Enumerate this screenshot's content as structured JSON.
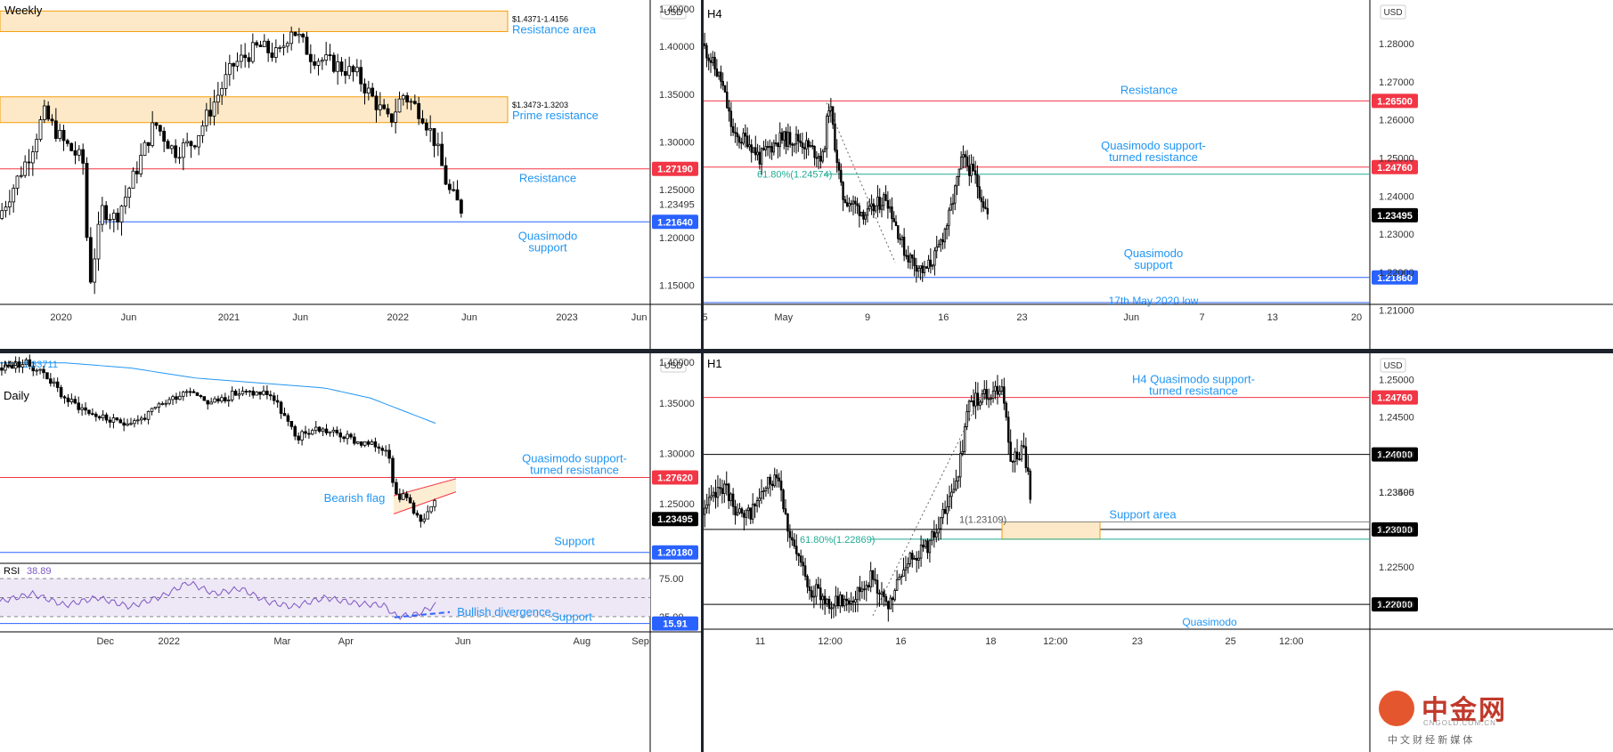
{
  "colors": {
    "up": "#ffffff",
    "down": "#000000",
    "wick": "#000000",
    "red_line": "#f23645",
    "blue_line": "#2962ff",
    "green_line": "#22ab94",
    "label_blue": "#2196f3",
    "zone_fill": "#fde9c7",
    "zone_border": "#f59e0b",
    "ma": "#2196f3",
    "rsi": "#7e57c2",
    "rsi_band": "#ede7f6",
    "price_tag": "#000000"
  },
  "logo": {
    "text": "中金网",
    "sub": "CNGOLD.COM.CN",
    "tag": "中 文 财 经 新 媒 体"
  },
  "chart_data": [
    {
      "id": "weekly",
      "type": "candlestick",
      "title": "Weekly",
      "currency": "USD",
      "ylim": [
        1.13,
        1.43
      ],
      "ticks": [
        "1.40000",
        "1.35000",
        "1.30000",
        "1.25000",
        "1.20000",
        "1.15000"
      ],
      "tick_values": [
        1.4,
        1.35,
        1.3,
        1.25,
        1.2,
        1.15
      ],
      "top_partial": "1.40000",
      "x_labels": [
        "2020",
        "Jun",
        "2021",
        "Jun",
        "2022",
        "Jun",
        "2023",
        "Jun"
      ],
      "x_positions": [
        0.094,
        0.198,
        0.352,
        0.462,
        0.612,
        0.722,
        0.872,
        0.983
      ],
      "last_price": "1.23495",
      "zones": [
        {
          "top": 1.4371,
          "bottom": 1.4156,
          "range_label": "$1.4371-1.4156",
          "name": "Resistance area"
        },
        {
          "top": 1.3473,
          "bottom": 1.3203,
          "range_label": "$1.3473-1.3203",
          "name": "Prime resistance"
        }
      ],
      "levels": [
        {
          "value": 1.2719,
          "tag": "1.27190",
          "color": "red",
          "label": "Resistance"
        },
        {
          "value": 1.2164,
          "tag": "1.21640",
          "color": "blue",
          "label": "Quasimodo support"
        }
      ],
      "segments": [
        [
          0,
          1.22
        ],
        [
          0.05,
          1.29
        ],
        [
          0.07,
          1.33
        ],
        [
          0.1,
          1.3
        ],
        [
          0.13,
          1.28
        ],
        [
          0.14,
          1.15
        ],
        [
          0.16,
          1.23
        ],
        [
          0.18,
          1.22
        ],
        [
          0.2,
          1.25
        ],
        [
          0.24,
          1.32
        ],
        [
          0.27,
          1.29
        ],
        [
          0.3,
          1.3
        ],
        [
          0.33,
          1.34
        ],
        [
          0.36,
          1.38
        ],
        [
          0.4,
          1.4
        ],
        [
          0.43,
          1.39
        ],
        [
          0.45,
          1.42
        ],
        [
          0.48,
          1.39
        ],
        [
          0.52,
          1.38
        ],
        [
          0.55,
          1.37
        ],
        [
          0.58,
          1.34
        ],
        [
          0.6,
          1.32
        ],
        [
          0.62,
          1.35
        ],
        [
          0.65,
          1.33
        ],
        [
          0.67,
          1.3
        ],
        [
          0.69,
          1.25
        ],
        [
          0.71,
          1.23
        ]
      ]
    },
    {
      "id": "h4",
      "type": "candlestick",
      "title": "H4",
      "currency": "USD",
      "ylim": [
        1.2085,
        1.2915
      ],
      "ticks": [
        "1.28000",
        "1.27000",
        "1.26000",
        "1.25000",
        "1.24000",
        "1.23000",
        "1.22000",
        "1.21000"
      ],
      "tick_values": [
        1.28,
        1.27,
        1.26,
        1.25,
        1.24,
        1.23,
        1.22,
        1.21
      ],
      "x_labels": [
        "5",
        "May",
        "9",
        "16",
        "23",
        "Jun",
        "7",
        "13",
        "20"
      ],
      "x_positions": [
        0.002,
        0.12,
        0.246,
        0.36,
        0.478,
        0.642,
        0.748,
        0.854,
        0.98
      ],
      "last_price": "1.23495",
      "levels": [
        {
          "value": 1.265,
          "tag": "1.26500",
          "color": "red",
          "label": "Resistance"
        },
        {
          "value": 1.2476,
          "tag": "1.24760",
          "color": "red",
          "label": "Quasimodo support-turned resistance"
        },
        {
          "value": 1.2186,
          "tag": "1.21860",
          "color": "blue",
          "label": "Quasimodo support"
        }
      ],
      "fib": {
        "value": 1.24574,
        "label": "61.80%(1.24574)"
      },
      "cut_label": "17th May 2020 low",
      "segments": [
        [
          0,
          1.28
        ],
        [
          0.03,
          1.27
        ],
        [
          0.05,
          1.255
        ],
        [
          0.07,
          1.255
        ],
        [
          0.09,
          1.25
        ],
        [
          0.12,
          1.255
        ],
        [
          0.15,
          1.255
        ],
        [
          0.19,
          1.25
        ],
        [
          0.2,
          1.265
        ],
        [
          0.22,
          1.24
        ],
        [
          0.26,
          1.235
        ],
        [
          0.29,
          1.24
        ],
        [
          0.32,
          1.225
        ],
        [
          0.35,
          1.22
        ],
        [
          0.37,
          1.225
        ],
        [
          0.39,
          1.235
        ],
        [
          0.41,
          1.25
        ],
        [
          0.43,
          1.245
        ],
        [
          0.45,
          1.235
        ]
      ]
    },
    {
      "id": "daily",
      "type": "candlestick",
      "title": "Daily",
      "currency": "USD",
      "ma_label": "MA",
      "ma_value": "1.33711",
      "ylim": [
        1.1945,
        1.3995
      ],
      "ticks": [
        "1.35000",
        "1.30000",
        "1.25000"
      ],
      "tick_values": [
        1.35,
        1.3,
        1.25
      ],
      "top_partial": "1.40000",
      "x_labels": [
        "Dec",
        "2022",
        "Mar",
        "Apr",
        "Jun",
        "Aug",
        "Sep"
      ],
      "x_positions": [
        0.162,
        0.26,
        0.434,
        0.532,
        0.712,
        0.895,
        0.985
      ],
      "last_price": "1.23495",
      "levels": [
        {
          "value": 1.2762,
          "tag": "1.27620",
          "color": "red",
          "label": "Quasimodo support-turned resistance"
        },
        {
          "value": 1.2018,
          "tag": "1.20180",
          "color": "blue",
          "label": "Support"
        }
      ],
      "flag_label": "Bearish flag",
      "segments": [
        [
          0,
          1.385
        ],
        [
          0.04,
          1.39
        ],
        [
          0.07,
          1.38
        ],
        [
          0.1,
          1.355
        ],
        [
          0.14,
          1.34
        ],
        [
          0.18,
          1.33
        ],
        [
          0.22,
          1.335
        ],
        [
          0.25,
          1.35
        ],
        [
          0.29,
          1.365
        ],
        [
          0.32,
          1.35
        ],
        [
          0.36,
          1.36
        ],
        [
          0.41,
          1.36
        ],
        [
          0.43,
          1.34
        ],
        [
          0.45,
          1.315
        ],
        [
          0.48,
          1.325
        ],
        [
          0.51,
          1.32
        ],
        [
          0.55,
          1.31
        ],
        [
          0.59,
          1.305
        ],
        [
          0.6,
          1.26
        ],
        [
          0.62,
          1.255
        ],
        [
          0.64,
          1.23
        ],
        [
          0.66,
          1.25
        ]
      ],
      "ma_segments": [
        [
          0,
          1.39
        ],
        [
          0.1,
          1.39
        ],
        [
          0.2,
          1.385
        ],
        [
          0.3,
          1.375
        ],
        [
          0.4,
          1.37
        ],
        [
          0.5,
          1.365
        ],
        [
          0.57,
          1.355
        ],
        [
          0.63,
          1.34
        ],
        [
          0.67,
          1.33
        ]
      ]
    },
    {
      "id": "rsi",
      "type": "line",
      "name": "RSI",
      "value": "38.89",
      "ylim": [
        5,
        95
      ],
      "ticks": [
        "75.00",
        "25.00"
      ],
      "tick_values": [
        75,
        25
      ],
      "last_tag": "15.91",
      "support_value": 15.91,
      "divergence_label": "Bullish divergence",
      "support_label": "Support",
      "segments": [
        [
          0,
          45
        ],
        [
          0.05,
          55
        ],
        [
          0.1,
          40
        ],
        [
          0.15,
          50
        ],
        [
          0.2,
          38
        ],
        [
          0.25,
          52
        ],
        [
          0.29,
          70
        ],
        [
          0.33,
          55
        ],
        [
          0.37,
          62
        ],
        [
          0.41,
          45
        ],
        [
          0.45,
          38
        ],
        [
          0.5,
          50
        ],
        [
          0.55,
          42
        ],
        [
          0.59,
          40
        ],
        [
          0.61,
          25
        ],
        [
          0.64,
          28
        ],
        [
          0.67,
          40
        ]
      ]
    },
    {
      "id": "h1",
      "type": "candlestick",
      "title": "H1",
      "currency": "USD",
      "ylim": [
        1.2155,
        1.2535
      ],
      "ticks": [
        "1.25000",
        "1.24500",
        "1.24000",
        "1.23500",
        "1.23000",
        "1.22500",
        "1.22000"
      ],
      "tick_values": [
        1.25,
        1.245,
        1.24,
        1.235,
        1.23,
        1.225,
        1.22
      ],
      "x_labels": [
        "11",
        "12:00",
        "16",
        "18",
        "12:00",
        "23",
        "25",
        "12:00"
      ],
      "x_positions": [
        0.085,
        0.19,
        0.296,
        0.431,
        0.528,
        0.651,
        0.791,
        0.882
      ],
      "last_price": "1.23495",
      "levels": [
        {
          "value": 1.2476,
          "tag": "1.24760",
          "color": "red",
          "label": "H4 Quasimodo support-turned resistance"
        },
        {
          "value": 1.24,
          "tag": "1.24000",
          "color": "black",
          "label": ""
        },
        {
          "value": 1.23,
          "tag": "1.23000",
          "color": "black",
          "label": ""
        },
        {
          "value": 1.22,
          "tag": "1.22000",
          "color": "black",
          "label": ""
        }
      ],
      "zone": {
        "top": 1.231,
        "bottom": 1.2287,
        "label": "Support area"
      },
      "fib_labels": [
        {
          "value": 1.23109,
          "label": "1(1.23109)"
        },
        {
          "value": 1.22869,
          "label": "61.80%(1.22869)"
        }
      ],
      "cut_label": "Quasimodo",
      "segments": [
        [
          0,
          1.232
        ],
        [
          0.03,
          1.236
        ],
        [
          0.06,
          1.231
        ],
        [
          0.09,
          1.235
        ],
        [
          0.11,
          1.238
        ],
        [
          0.13,
          1.228
        ],
        [
          0.16,
          1.222
        ],
        [
          0.19,
          1.22
        ],
        [
          0.22,
          1.221
        ],
        [
          0.25,
          1.224
        ],
        [
          0.27,
          1.219
        ],
        [
          0.3,
          1.226
        ],
        [
          0.33,
          1.228
        ],
        [
          0.36,
          1.233
        ],
        [
          0.38,
          1.24
        ],
        [
          0.39,
          1.247
        ],
        [
          0.42,
          1.248
        ],
        [
          0.44,
          1.249
        ],
        [
          0.45,
          1.239
        ],
        [
          0.47,
          1.241
        ],
        [
          0.48,
          1.235
        ]
      ]
    }
  ]
}
